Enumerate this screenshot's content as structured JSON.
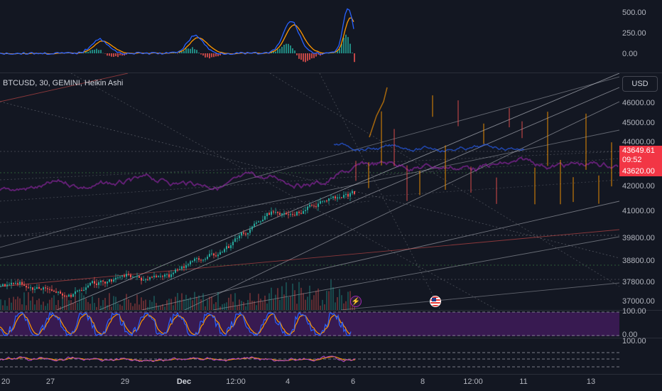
{
  "symbol": {
    "title": "BTCUSD, 30, GEMINI, Heikin Ashi",
    "currency": "USD"
  },
  "macd_axis": [
    "500.00",
    "250.00",
    "0.00"
  ],
  "price_axis": [
    "46000.00",
    "45000.00",
    "44000.00",
    "42000.00",
    "41000.00",
    "39800.00",
    "38800.00",
    "37800.00",
    "37000.00"
  ],
  "price_tags": {
    "last_price": "43649.61",
    "countdown": "09:52",
    "second_price": "43620.00"
  },
  "stoch_axis": [
    "100.00",
    "0.00"
  ],
  "rsi_axis": [
    "100.00"
  ],
  "time_axis": [
    "20",
    "27",
    "29",
    "Dec",
    "12:00",
    "4",
    "6",
    "8",
    "12:00",
    "11",
    "13"
  ],
  "colors": {
    "background": "#131722",
    "up": "#26a69a",
    "down": "#ef5350",
    "price_tag": "#f23645",
    "macd_line": "#2962ff",
    "signal_line": "#ff9800",
    "stoch_fill": "#7e1fa8"
  },
  "markers": {
    "lightning": "lightning-icon",
    "flag": "us-flag-icon"
  }
}
